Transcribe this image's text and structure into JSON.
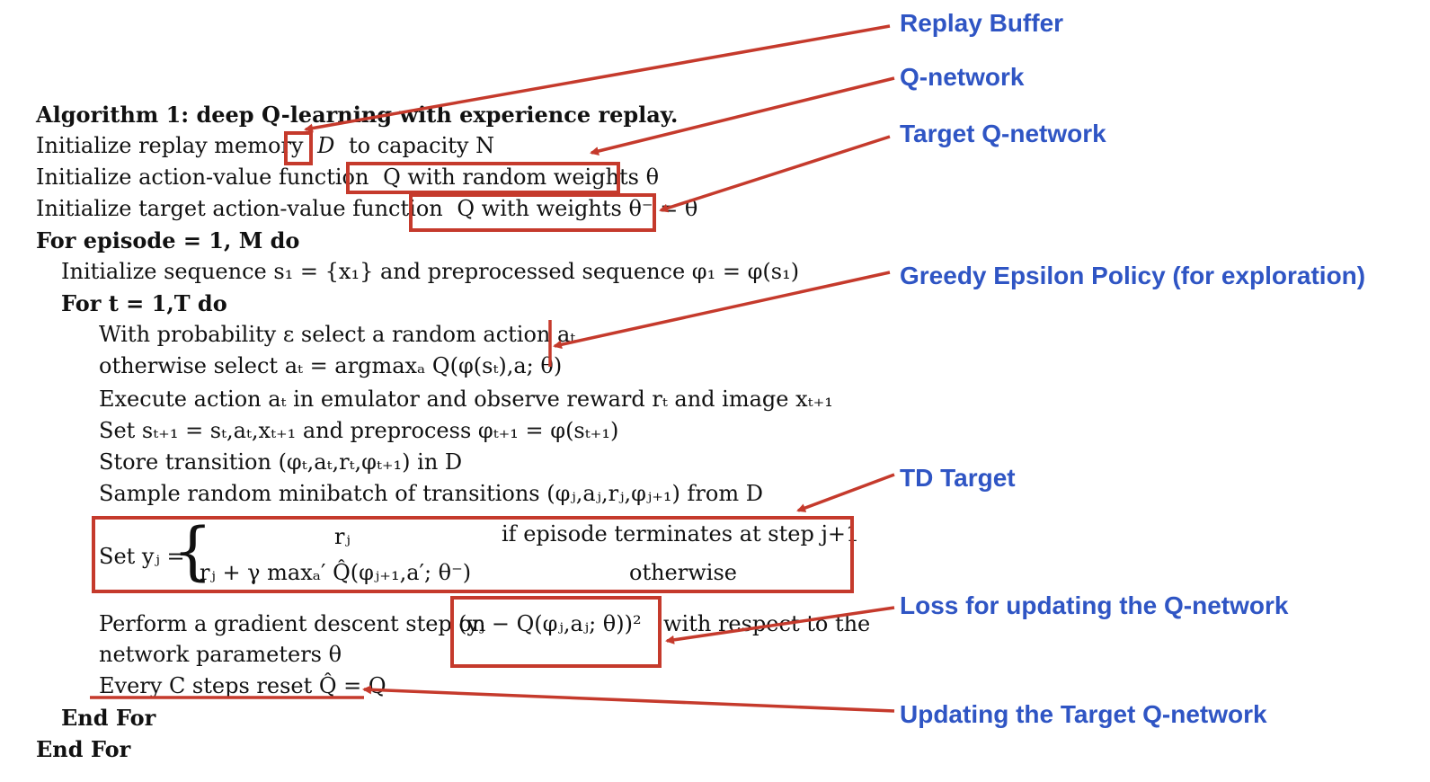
{
  "algorithm": {
    "title": "Algorithm 1: deep Q-learning with experience replay.",
    "lines": {
      "init_memory_pre": "Initialize replay memory",
      "init_memory_var": "D",
      "init_memory_post": "to capacity N",
      "init_q_pre": "Initialize action-value function",
      "init_q_boxed": "Q with random weights θ",
      "init_target_pre": "Initialize target action-value function",
      "init_target_boxed": "Q with weights θ⁻ = θ",
      "for_episode": "For episode = 1, M do",
      "init_seq": "Initialize sequence s₁ = {x₁} and preprocessed sequence φ₁ = φ(s₁)",
      "for_t": "For t = 1,T do",
      "eps_1": "With probability ε select a random action aₜ",
      "eps_2": "otherwise select aₜ = argmaxₐ Q(φ(sₜ),a; θ)",
      "execute": "Execute action aₜ in emulator and observe reward rₜ and image xₜ₊₁",
      "set_s": "Set sₜ₊₁ = sₜ,aₜ,xₜ₊₁ and preprocess φₜ₊₁ = φ(sₜ₊₁)",
      "store": "Store transition (φₜ,aₜ,rₜ,φₜ₊₁) in D",
      "sample": "Sample random minibatch of transitions (φⱼ,aⱼ,rⱼ,φⱼ₊₁) from D",
      "set_y": "Set yⱼ =",
      "case1_val": "rⱼ",
      "case1_cond": "if episode terminates at step j+1",
      "case2_val": "rⱼ + γ maxₐ′ Q̂(φⱼ₊₁,a′; θ⁻)",
      "case2_cond": "otherwise",
      "grad_pre": "Perform a gradient descent step on",
      "grad_loss": "(yⱼ − Q(φⱼ,aⱼ; θ))²",
      "grad_post": "with respect to the",
      "grad_2": "network parameters θ",
      "reset": "Every C steps reset Q̂ = Q",
      "end_for_inner": "End For",
      "end_for_outer": "End For"
    }
  },
  "annotations": {
    "replay_buffer": "Replay Buffer",
    "q_network": "Q-network",
    "target_q_network": "Target Q-network",
    "greedy_epsilon": "Greedy Epsilon Policy (for exploration)",
    "td_target": "TD Target",
    "loss": "Loss for updating the Q-network",
    "update_target": "Updating the Target Q-network"
  },
  "colors": {
    "annotation_text": "#2f55c4",
    "highlight": "#c53a2c"
  }
}
